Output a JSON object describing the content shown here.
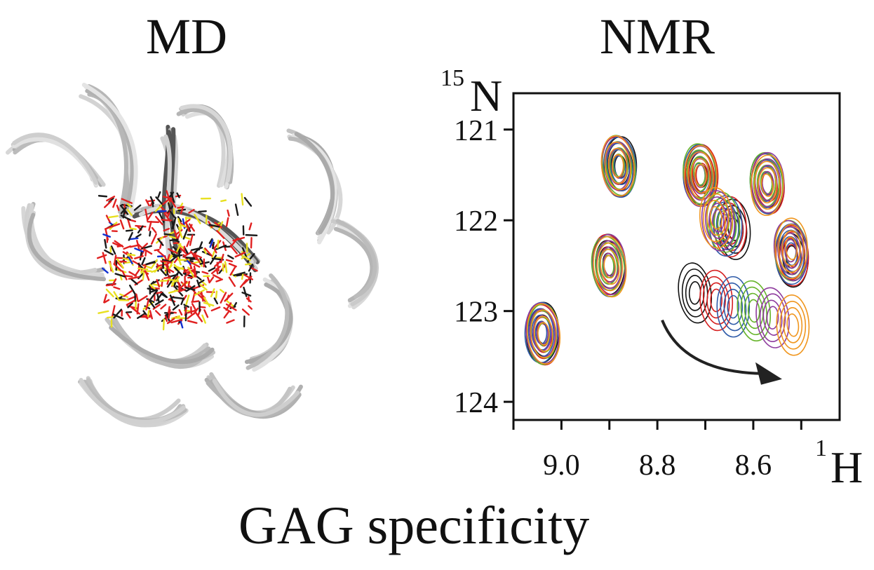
{
  "titles": {
    "left": "MD",
    "right": "NMR"
  },
  "caption": "GAG specificity",
  "colors": {
    "ribbon": "#c8c8c8",
    "ligand_carbon": "#1a1a1a",
    "ligand_oxygen": "#e02020",
    "ligand_sulfur": "#e8e020",
    "ligand_nitrogen": "#1030d0"
  },
  "chart_data": {
    "type": "scatter",
    "title": "NMR",
    "xlabel_sup": "1",
    "xlabel": "H",
    "ylabel_sup": "15",
    "ylabel": "N",
    "x_ticks": [
      "9.0",
      "8.8",
      "8.6"
    ],
    "y_ticks": [
      "121",
      "122",
      "123",
      "124"
    ],
    "xlim": [
      9.1,
      8.42
    ],
    "ylim": [
      120.6,
      124.2
    ],
    "series_colors": [
      "#111111",
      "#d62020",
      "#2e5aa8",
      "#66b42a",
      "#8e3b9e",
      "#f0961e"
    ],
    "peaks": [
      {
        "x": 9.04,
        "y": 123.25,
        "shift": [
          0,
          0
        ]
      },
      {
        "x": 8.88,
        "y": 121.4,
        "shift": [
          0,
          0
        ]
      },
      {
        "x": 8.9,
        "y": 122.5,
        "shift": [
          0,
          0
        ]
      },
      {
        "x": 8.71,
        "y": 121.5,
        "shift": [
          0,
          0
        ]
      },
      {
        "x": 8.57,
        "y": 121.6,
        "shift": [
          0,
          0
        ]
      },
      {
        "x": 8.64,
        "y": 122.1,
        "shift": [
          0.04,
          -0.12
        ]
      },
      {
        "x": 8.52,
        "y": 122.4,
        "shift": [
          0,
          -0.1
        ]
      },
      {
        "x": 8.72,
        "y": 122.8,
        "shift": [
          -0.2,
          0.35
        ]
      }
    ],
    "arrow": {
      "from": [
        8.79,
        123.1
      ],
      "to": [
        8.54,
        123.75
      ]
    }
  }
}
